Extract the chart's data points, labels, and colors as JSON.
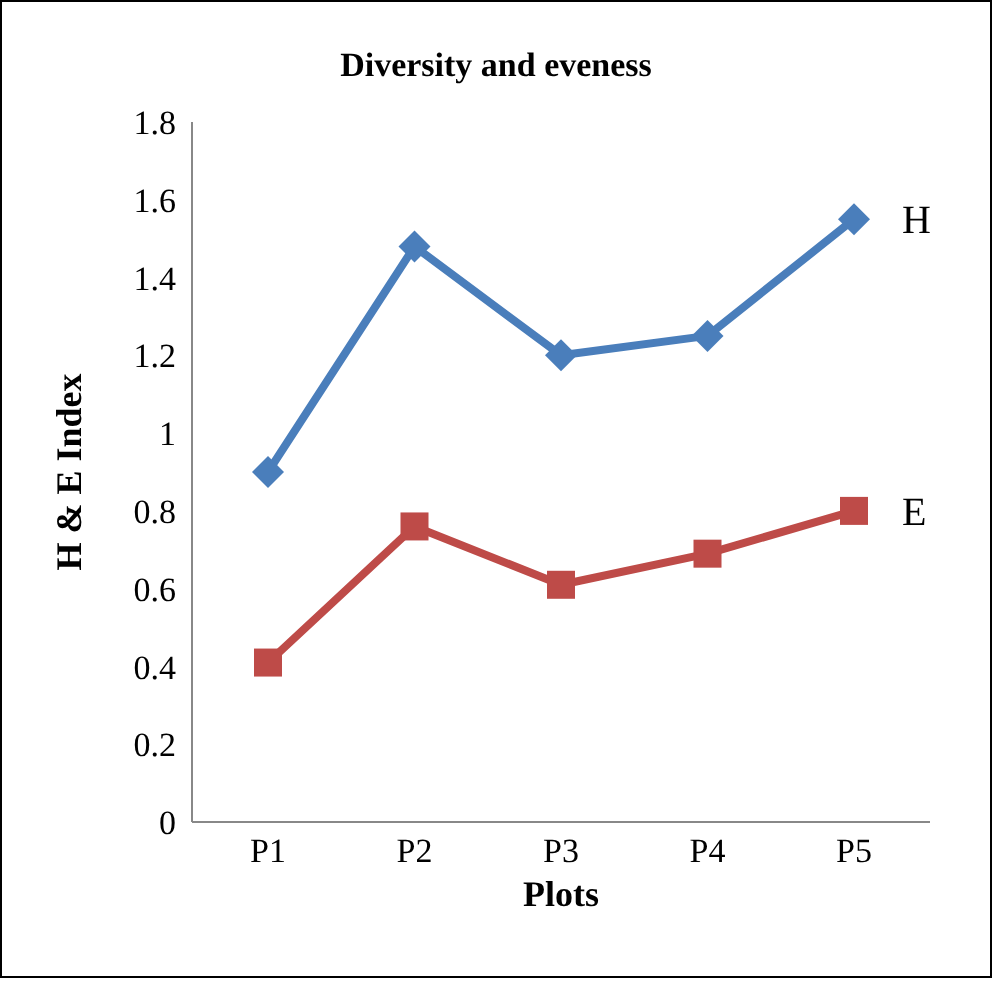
{
  "chart_data": {
    "type": "line",
    "title": "Diversity and eveness",
    "xlabel": "Plots",
    "ylabel": "H & E Index",
    "categories": [
      "P1",
      "P2",
      "P3",
      "P4",
      "P5"
    ],
    "series": [
      {
        "name": "H",
        "color": "#4a7ebb",
        "marker": "diamond",
        "values": [
          0.9,
          1.48,
          1.2,
          1.25,
          1.55
        ]
      },
      {
        "name": "E",
        "color": "#be4b48",
        "marker": "square",
        "values": [
          0.41,
          0.76,
          0.61,
          0.69,
          0.8
        ]
      }
    ],
    "ylim": [
      0,
      1.8
    ],
    "yticks": [
      0,
      0.2,
      0.4,
      0.6,
      0.8,
      1,
      1.2,
      1.4,
      1.6,
      1.8
    ],
    "grid": false
  }
}
